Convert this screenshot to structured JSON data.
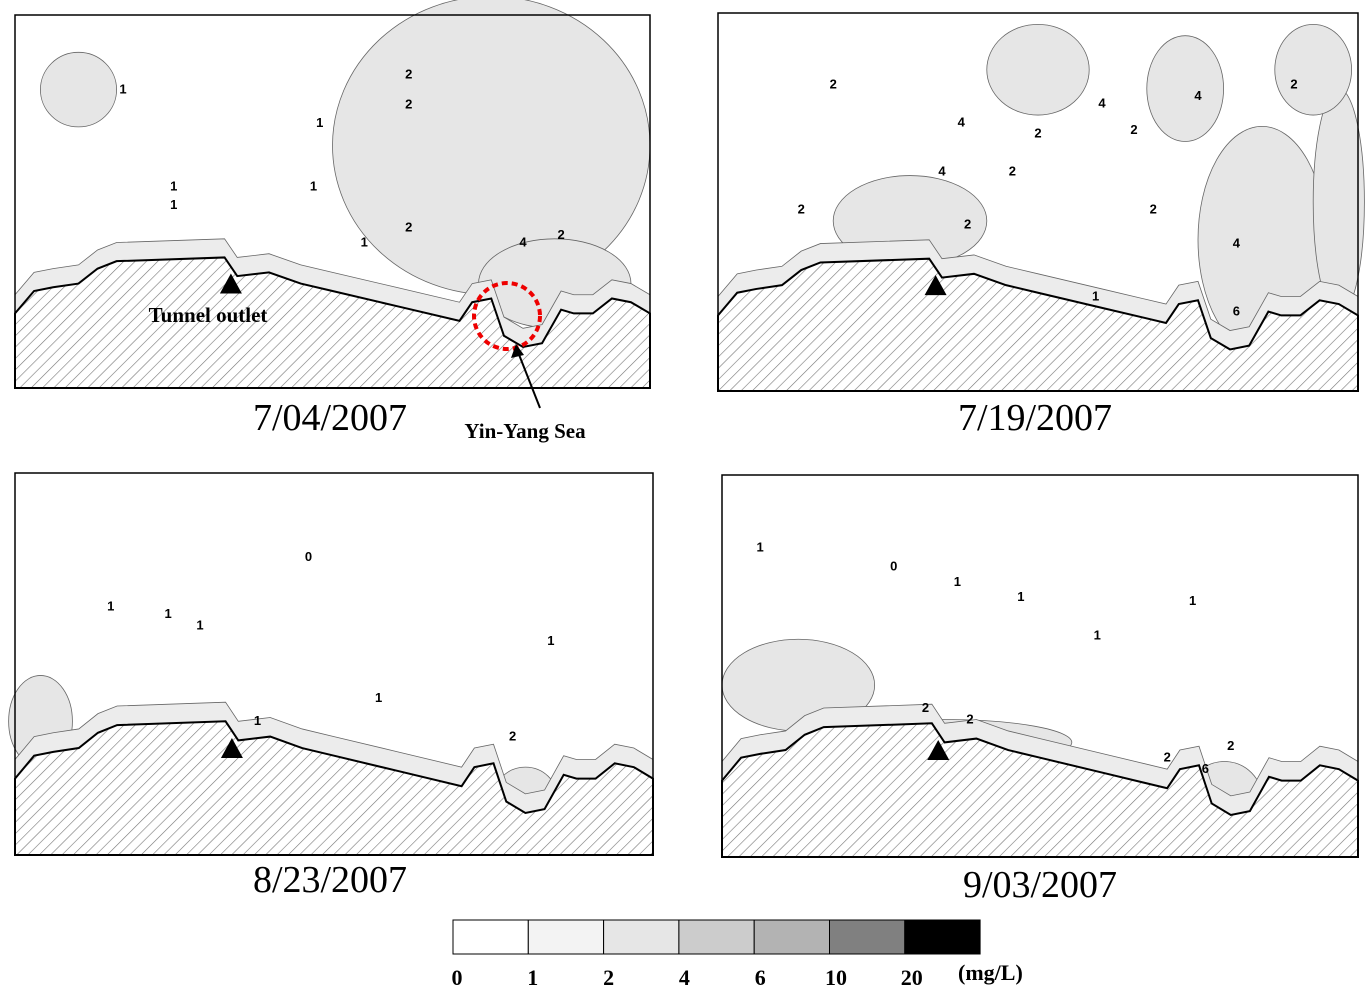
{
  "panels": [
    {
      "date": "7/04/2007",
      "contour_labels": [
        "1",
        "2",
        "2",
        "1",
        "1",
        "1",
        "1",
        "1",
        "2",
        "4",
        "2"
      ]
    },
    {
      "date": "7/19/2007",
      "contour_labels": [
        "2",
        "4",
        "4",
        "2",
        "4",
        "2",
        "2",
        "2",
        "2",
        "4",
        "2",
        "2",
        "4",
        "6",
        "1"
      ]
    },
    {
      "date": "8/23/2007",
      "contour_labels": [
        "0",
        "1",
        "1",
        "1",
        "1",
        "1",
        "2",
        "1"
      ]
    },
    {
      "date": "9/03/2007",
      "contour_labels": [
        "0",
        "1",
        "1",
        "1",
        "1",
        "1",
        "2",
        "2",
        "2",
        "6",
        "2"
      ]
    }
  ],
  "annotations": {
    "tunnel_outlet": "Tunnel outlet",
    "yin_yang_sea": "Yin-Yang Sea"
  },
  "colorbar": {
    "ticks": [
      0,
      1,
      2,
      4,
      6,
      10,
      20
    ],
    "colors": [
      "#ffffff",
      "#f3f3f3",
      "#e6e6e6",
      "#cccccc",
      "#b3b3b3",
      "#808080",
      "#000000"
    ],
    "unit": "(mg/L)"
  }
}
